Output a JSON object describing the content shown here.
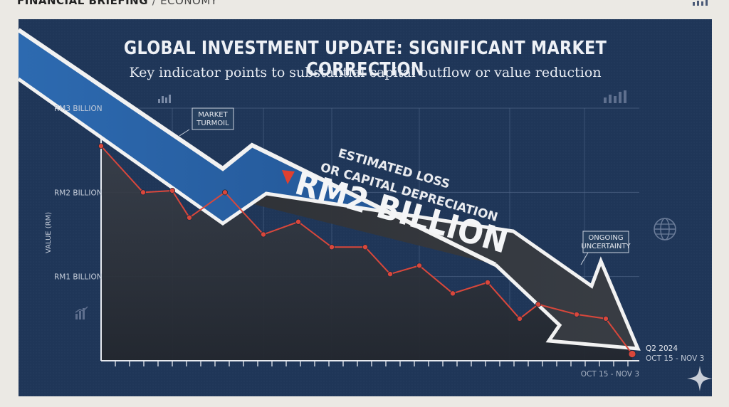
{
  "header": {
    "section": "FINANCIAL BRIEFING",
    "separator": "/",
    "category": "ECONOMY"
  },
  "chart_data": {
    "type": "line",
    "title": "GLOBAL INVESTMENT UPDATE: SIGNIFICANT MARKET CORRECTION",
    "subtitle": "Key indicator points to substantial capital outflow or value reduction",
    "ylabel": "VALUE (RM)",
    "yticks": [
      "RM3 BILLION",
      "RM2 BILLION",
      "RM1 BILLION"
    ],
    "ytick_values": [
      3,
      2,
      1
    ],
    "ylim": [
      0,
      3
    ],
    "grid": true,
    "series": [
      {
        "values": [
          2.55,
          2.0,
          2.02,
          1.7,
          2.0,
          1.5,
          1.65,
          1.35,
          1.35,
          1.03,
          1.13,
          0.8,
          0.93,
          0.5,
          0.67,
          0.55,
          0.5,
          0.08
        ]
      }
    ],
    "x_end_label": "Q2 2024",
    "x_end_sublabel": "OCT 15 - NOV 3",
    "x_axis_label": "OCT 15 - NOV 3",
    "headline_value": "RM2 BILLION",
    "headline_caption_line1": "ESTIMATED LOSS",
    "headline_caption_line2": "OR CAPITAL DEPRECIATION",
    "annotations": [
      {
        "line1": "MARKET",
        "line2": "TURMOIL"
      },
      {
        "line1": "ONGOING",
        "line2": "UNCERTAINTY"
      }
    ],
    "colors": {
      "background": "#1f3658",
      "line": "#d9473b",
      "arrow_top": "#2f6fae",
      "arrow_bottom": "#333538",
      "area": "#2a2f38"
    }
  }
}
